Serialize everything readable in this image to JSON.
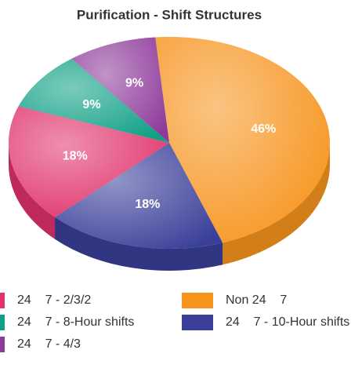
{
  "chart_data": {
    "type": "pie",
    "title": "Purification - Shift Structures",
    "categories": [
      "Non 24    7",
      "24    7 - 10-Hour shifts",
      "24    7 - 2/3/2",
      "24    7 - 8-Hour shifts",
      "24    7 - 4/3"
    ],
    "values": [
      46,
      18,
      18,
      9,
      9
    ],
    "value_labels": [
      "46%",
      "18%",
      "18%",
      "9%",
      "9%"
    ],
    "colors": [
      "#f7941d",
      "#3a3f99",
      "#e0336b",
      "#0fa085",
      "#8e3a9a"
    ]
  }
}
